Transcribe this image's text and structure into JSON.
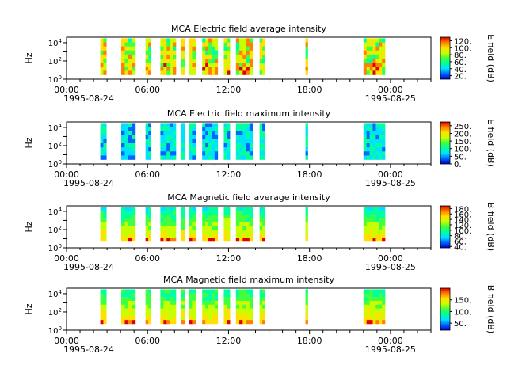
{
  "chart_data": [
    {
      "type": "heatmap",
      "title": "MCA  Electric field average intensity",
      "ylabel": "Hz",
      "y_scale": "log",
      "ylim": [
        1,
        40000
      ],
      "y_ticks": [
        "10^0",
        "10^2",
        "10^4"
      ],
      "x_ticks": [
        "00:00",
        "06:00",
        "12:00",
        "18:00",
        "00:00"
      ],
      "x_date_labels": [
        "1995-08-24",
        "1995-08-25"
      ],
      "colorbar_label": "E field (dB)",
      "colorbar_range": [
        10,
        130
      ],
      "colorbar_ticks": [
        "20.",
        "40.",
        "60.",
        "80.",
        "100.",
        "120."
      ],
      "data_blocks_hours": [
        [
          2.5,
          2.95
        ],
        [
          4.05,
          5.1
        ],
        [
          5.85,
          6.25
        ],
        [
          6.95,
          8.1
        ],
        [
          8.45,
          8.75
        ],
        [
          9.05,
          9.55
        ],
        [
          10.05,
          11.2
        ],
        [
          11.65,
          12.1
        ],
        [
          12.55,
          13.8
        ],
        [
          14.3,
          14.7
        ],
        [
          17.7,
          17.85
        ],
        [
          22.0,
          23.6
        ]
      ],
      "frequency_range_hz": [
        3,
        30000
      ],
      "colormap": [
        "#0000c8",
        "#0064ff",
        "#00e0ff",
        "#00ffa0",
        "#40ff40",
        "#c8ff00",
        "#ffe000",
        "#ff8000",
        "#e00000"
      ],
      "intensity_note": "average intensity mostly 60-100 dB, peaks near 120 dB at low frequency"
    },
    {
      "type": "heatmap",
      "title": "MCA  Electric field maximum intensity",
      "ylabel": "Hz",
      "y_scale": "log",
      "ylim": [
        1,
        40000
      ],
      "y_ticks": [
        "10^0",
        "10^2",
        "10^4"
      ],
      "x_ticks": [
        "00:00",
        "06:00",
        "12:00",
        "18:00",
        "00:00"
      ],
      "x_date_labels": [
        "1995-08-24",
        "1995-08-25"
      ],
      "colorbar_label": "E field (dB)",
      "colorbar_range": [
        0,
        275
      ],
      "colorbar_ticks": [
        "0.",
        "50.",
        "100.",
        "150.",
        "200.",
        "250."
      ],
      "data_blocks_hours": [
        [
          2.5,
          2.95
        ],
        [
          4.05,
          5.1
        ],
        [
          5.85,
          6.25
        ],
        [
          6.95,
          8.1
        ],
        [
          8.45,
          8.75
        ],
        [
          9.05,
          9.55
        ],
        [
          10.05,
          11.2
        ],
        [
          11.65,
          12.1
        ],
        [
          12.55,
          13.8
        ],
        [
          14.3,
          14.7
        ],
        [
          17.7,
          17.85
        ],
        [
          22.0,
          23.6
        ]
      ],
      "frequency_range_hz": [
        3,
        30000
      ],
      "colormap": [
        "#0000c8",
        "#0064ff",
        "#00e0ff",
        "#00ffa0",
        "#40ff40",
        "#c8ff00",
        "#ffe000",
        "#ff8000",
        "#e00000"
      ],
      "intensity_note": "maximum intensity mostly 80-130 dB"
    },
    {
      "type": "heatmap",
      "title": "MCA  Magnetic field average intensity",
      "ylabel": "Hz",
      "y_scale": "log",
      "ylim": [
        1,
        40000
      ],
      "y_ticks": [
        "10^0",
        "10^2",
        "10^4"
      ],
      "x_ticks": [
        "00:00",
        "06:00",
        "12:00",
        "18:00",
        "00:00"
      ],
      "x_date_labels": [
        "1995-08-24",
        "1995-08-25"
      ],
      "colorbar_label": "B field (dB)",
      "colorbar_range": [
        35,
        190
      ],
      "colorbar_ticks": [
        "40.",
        "60.",
        "80.",
        "100.",
        "120.",
        "140.",
        "160.",
        "180."
      ],
      "data_blocks_hours": [
        [
          2.5,
          2.95
        ],
        [
          4.05,
          5.1
        ],
        [
          5.85,
          6.25
        ],
        [
          6.95,
          8.1
        ],
        [
          8.45,
          8.75
        ],
        [
          9.05,
          9.55
        ],
        [
          10.05,
          11.2
        ],
        [
          11.65,
          12.1
        ],
        [
          12.55,
          13.8
        ],
        [
          14.3,
          14.7
        ],
        [
          17.7,
          17.85
        ],
        [
          22.0,
          23.6
        ]
      ],
      "frequency_range_hz": [
        5,
        30000
      ],
      "colormap": [
        "#0000c8",
        "#0064ff",
        "#00e0ff",
        "#00ffa0",
        "#40ff40",
        "#c8ff00",
        "#ffe000",
        "#ff8000",
        "#e00000"
      ],
      "intensity_note": "intensity rises toward low frequency; red bursts below 20 Hz"
    },
    {
      "type": "heatmap",
      "title": "MCA  Magnetic field maximum intensity",
      "ylabel": "Hz",
      "y_scale": "log",
      "ylim": [
        1,
        40000
      ],
      "y_ticks": [
        "10^0",
        "10^2",
        "10^4"
      ],
      "x_ticks": [
        "00:00",
        "06:00",
        "12:00",
        "18:00",
        "00:00"
      ],
      "x_date_labels": [
        "1995-08-24",
        "1995-08-25"
      ],
      "colorbar_label": "B field (dB)",
      "colorbar_range": [
        20,
        200
      ],
      "colorbar_ticks": [
        "50.",
        "100.",
        "150."
      ],
      "data_blocks_hours": [
        [
          2.5,
          2.95
        ],
        [
          4.05,
          5.1
        ],
        [
          5.85,
          6.25
        ],
        [
          6.95,
          8.1
        ],
        [
          8.45,
          8.75
        ],
        [
          9.05,
          9.55
        ],
        [
          10.05,
          11.2
        ],
        [
          11.65,
          12.1
        ],
        [
          12.55,
          13.8
        ],
        [
          14.3,
          14.7
        ],
        [
          17.7,
          17.85
        ],
        [
          22.0,
          23.6
        ]
      ],
      "frequency_range_hz": [
        5,
        30000
      ],
      "colormap": [
        "#0000c8",
        "#0064ff",
        "#00e0ff",
        "#00ffa0",
        "#40ff40",
        "#c8ff00",
        "#ffe000",
        "#ff8000",
        "#e00000"
      ],
      "intensity_note": "maximum intensity mostly 100-130 dB, higher near low frequency"
    }
  ]
}
